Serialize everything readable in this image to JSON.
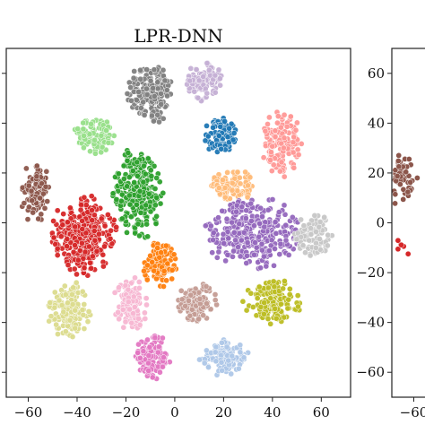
{
  "chart_data": [
    {
      "type": "scatter",
      "title": "LPR-DNN",
      "xlabel": "",
      "ylabel": "",
      "xlim": [
        -69,
        72
      ],
      "ylim": [
        -70,
        70
      ],
      "x_ticks": [
        -60,
        -40,
        -20,
        0,
        20,
        40,
        60
      ],
      "x_tick_labels": [
        "−60",
        "−40",
        "−20",
        "0",
        "20",
        "40",
        "60"
      ],
      "y_ticks": [
        -60,
        -40,
        -20,
        0,
        20,
        40,
        60
      ],
      "y_tick_labels": [
        "",
        "",
        "",
        "",
        "",
        "",
        ""
      ],
      "grid": false,
      "legend": null,
      "clusters": [
        {
          "color": "#7f7f7f",
          "center": [
            -10,
            52
          ],
          "spread": [
            9,
            12
          ],
          "count": 170
        },
        {
          "color": "#c5b0d5",
          "center": [
            12,
            57
          ],
          "spread": [
            7,
            8
          ],
          "count": 110
        },
        {
          "color": "#98df8a",
          "center": [
            -33,
            35
          ],
          "spread": [
            8,
            7
          ],
          "count": 100
        },
        {
          "color": "#1f77b4",
          "center": [
            19,
            35
          ],
          "spread": [
            7,
            7
          ],
          "count": 100
        },
        {
          "color": "#ff9896",
          "center": [
            44,
            32
          ],
          "spread": [
            8,
            13
          ],
          "count": 140
        },
        {
          "color": "#8c564b",
          "center": [
            -57,
            12
          ],
          "spread": [
            6,
            12
          ],
          "count": 120
        },
        {
          "color": "#2ca02c",
          "center": [
            -15,
            12
          ],
          "spread": [
            10,
            18
          ],
          "count": 260
        },
        {
          "color": "#ffbb78",
          "center": [
            24,
            15
          ],
          "spread": [
            9,
            6
          ],
          "count": 100
        },
        {
          "color": "#d62728",
          "center": [
            -37,
            -5
          ],
          "spread": [
            13,
            16
          ],
          "count": 300
        },
        {
          "color": "#9467bd",
          "center": [
            32,
            -4
          ],
          "spread": [
            19,
            14
          ],
          "count": 320
        },
        {
          "color": "#c7c7c7",
          "center": [
            57,
            -5
          ],
          "spread": [
            8,
            8
          ],
          "count": 110
        },
        {
          "color": "#ff7f0e",
          "center": [
            -6,
            -17
          ],
          "spread": [
            7,
            9
          ],
          "count": 120
        },
        {
          "color": "#dbdb8d",
          "center": [
            -43,
            -35
          ],
          "spread": [
            9,
            11
          ],
          "count": 140
        },
        {
          "color": "#f7b6d2",
          "center": [
            -18,
            -33
          ],
          "spread": [
            7,
            11
          ],
          "count": 120
        },
        {
          "color": "#c49c94",
          "center": [
            9,
            -32
          ],
          "spread": [
            8,
            8
          ],
          "count": 120
        },
        {
          "color": "#bcbd22",
          "center": [
            40,
            -32
          ],
          "spread": [
            12,
            9
          ],
          "count": 160
        },
        {
          "color": "#e377c2",
          "center": [
            -9,
            -54
          ],
          "spread": [
            7,
            9
          ],
          "count": 120
        },
        {
          "color": "#aec7e8",
          "center": [
            20,
            -54
          ],
          "spread": [
            10,
            7
          ],
          "count": 120
        }
      ]
    },
    {
      "type": "scatter",
      "title": "",
      "xlabel": "",
      "ylabel": "",
      "x_ticks": [
        -60
      ],
      "x_tick_labels": [
        "−60"
      ],
      "y_ticks": [
        60,
        40,
        20,
        0,
        -20,
        -40,
        -60
      ],
      "y_tick_labels": [
        "60",
        "40",
        "20",
        "0",
        "−20",
        "−40",
        "−60"
      ],
      "grid": false,
      "legend": null,
      "clusters": [
        {
          "color": "#8c564b",
          "center": [
            -66,
            18
          ],
          "spread": [
            5,
            10
          ],
          "count": 60
        },
        {
          "color": "#d62728",
          "center": [
            -65,
            -9
          ],
          "spread": [
            3,
            3
          ],
          "count": 6
        }
      ]
    }
  ]
}
